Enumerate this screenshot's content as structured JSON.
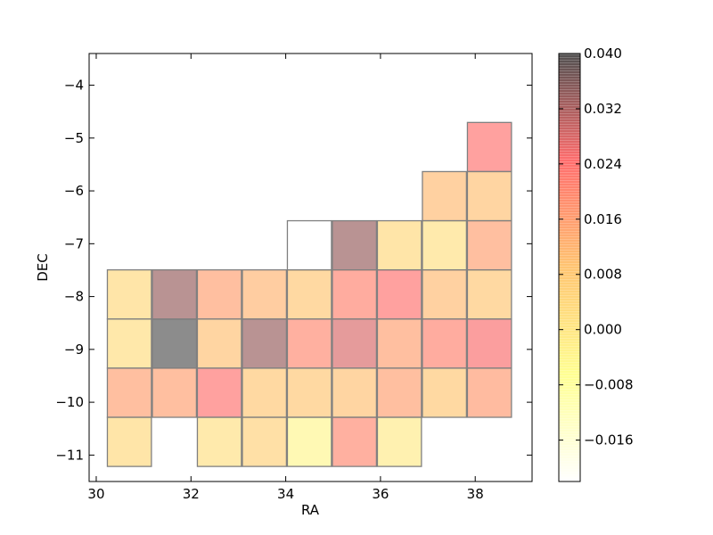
{
  "chart_data": {
    "type": "heatmap",
    "title": "",
    "xlabel": "RA",
    "ylabel": "DEC",
    "xlim": [
      29.85,
      39.2
    ],
    "ylim": [
      -11.5,
      -3.4
    ],
    "x_ticks": [
      30,
      32,
      34,
      36,
      38
    ],
    "x_tick_labels": [
      "30",
      "32",
      "34",
      "36",
      "38"
    ],
    "y_ticks": [
      -4,
      -5,
      -6,
      -7,
      -8,
      -9,
      -10,
      -11
    ],
    "y_tick_labels": [
      "−4",
      "−5",
      "−6",
      "−7",
      "−8",
      "−9",
      "−10",
      "−11"
    ],
    "cell_size": [
      0.93,
      0.93
    ],
    "colorbar": {
      "range": [
        -0.022,
        0.04
      ],
      "ticks": [
        0.04,
        0.032,
        0.024,
        0.016,
        0.008,
        0.0,
        -0.008,
        -0.016
      ],
      "tick_labels": [
        "0.040",
        "0.032",
        "0.024",
        "0.016",
        "0.008",
        "0.000",
        "−0.008",
        "−0.016"
      ],
      "colormap": [
        "#ffffff",
        "#ffff60",
        "#ffaa30",
        "#ff2a2a",
        "#000000"
      ]
    },
    "cells": [
      {
        "ra": 30.7,
        "dec": -7.96,
        "value": 0.004
      },
      {
        "ra": 30.7,
        "dec": -8.89,
        "value": 0.003
      },
      {
        "ra": 30.7,
        "dec": -9.82,
        "value": 0.016
      },
      {
        "ra": 30.7,
        "dec": -10.75,
        "value": 0.004
      },
      {
        "ra": 31.65,
        "dec": -7.96,
        "value": 0.034
      },
      {
        "ra": 31.65,
        "dec": -8.89,
        "value": 0.04
      },
      {
        "ra": 31.65,
        "dec": -9.82,
        "value": 0.016
      },
      {
        "ra": 32.6,
        "dec": -7.96,
        "value": 0.016
      },
      {
        "ra": 32.6,
        "dec": -8.89,
        "value": 0.01
      },
      {
        "ra": 32.6,
        "dec": -9.82,
        "value": 0.024
      },
      {
        "ra": 32.6,
        "dec": -10.75,
        "value": 0.002
      },
      {
        "ra": 33.55,
        "dec": -7.96,
        "value": 0.012
      },
      {
        "ra": 33.55,
        "dec": -8.89,
        "value": 0.034
      },
      {
        "ra": 33.55,
        "dec": -9.82,
        "value": 0.009
      },
      {
        "ra": 33.55,
        "dec": -10.75,
        "value": 0.006
      },
      {
        "ra": 34.5,
        "dec": -7.03,
        "value": -0.022
      },
      {
        "ra": 34.5,
        "dec": -7.96,
        "value": 0.009
      },
      {
        "ra": 34.5,
        "dec": -8.89,
        "value": 0.02
      },
      {
        "ra": 34.5,
        "dec": -9.82,
        "value": 0.009
      },
      {
        "ra": 34.5,
        "dec": -10.75,
        "value": -0.004
      },
      {
        "ra": 35.45,
        "dec": -7.03,
        "value": 0.034
      },
      {
        "ra": 35.45,
        "dec": -7.96,
        "value": 0.021
      },
      {
        "ra": 35.45,
        "dec": -8.89,
        "value": 0.028
      },
      {
        "ra": 35.45,
        "dec": -9.82,
        "value": 0.01
      },
      {
        "ra": 35.45,
        "dec": -10.75,
        "value": 0.02
      },
      {
        "ra": 36.4,
        "dec": -7.03,
        "value": 0.004
      },
      {
        "ra": 36.4,
        "dec": -7.96,
        "value": 0.024
      },
      {
        "ra": 36.4,
        "dec": -8.89,
        "value": 0.016
      },
      {
        "ra": 36.4,
        "dec": -9.82,
        "value": 0.016
      },
      {
        "ra": 36.4,
        "dec": -10.75,
        "value": -0.001
      },
      {
        "ra": 37.35,
        "dec": -6.1,
        "value": 0.011
      },
      {
        "ra": 37.35,
        "dec": -7.03,
        "value": 0.002
      },
      {
        "ra": 37.35,
        "dec": -7.96,
        "value": 0.011
      },
      {
        "ra": 37.35,
        "dec": -8.89,
        "value": 0.021
      },
      {
        "ra": 37.35,
        "dec": -9.82,
        "value": 0.009
      },
      {
        "ra": 38.3,
        "dec": -5.17,
        "value": 0.024
      },
      {
        "ra": 38.3,
        "dec": -6.1,
        "value": 0.01
      },
      {
        "ra": 38.3,
        "dec": -7.03,
        "value": 0.016
      },
      {
        "ra": 38.3,
        "dec": -7.96,
        "value": 0.009
      },
      {
        "ra": 38.3,
        "dec": -8.89,
        "value": 0.025
      },
      {
        "ra": 38.3,
        "dec": -9.82,
        "value": 0.017
      }
    ]
  }
}
